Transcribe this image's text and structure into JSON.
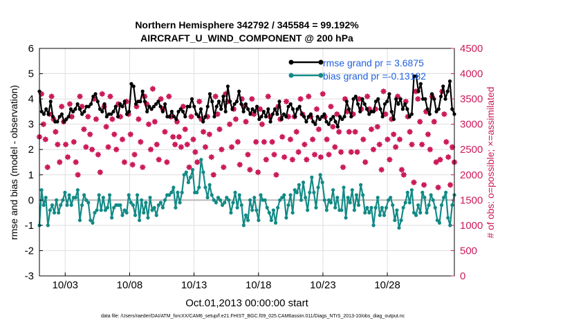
{
  "chart_data": {
    "type": "line",
    "title": "Northern Hemisphere 342792 / 345584 = 99.192%",
    "subtitle": "AIRCRAFT_U_WIND_COMPONENT @ 200 hPa",
    "xlabel": "Oct.01,2013 00:00:00 start",
    "ylabel": "rmse and bias (model - observation)",
    "ylabel_right": "# of obs: o=possible; ×=assimilated",
    "footer": "data file: /Users/raeder/DAI/ATM_forcXX/CAM6_setup/f.e21.FHIST_BGC.f09_025.CAM6assim.011/Diags_NTrS_2013-10/obs_diag_output.nc",
    "xlim": [
      1,
      33.2
    ],
    "ylim": [
      -3,
      6
    ],
    "ylim_right": [
      0,
      4500
    ],
    "x_ticks": [
      3,
      8,
      13,
      18,
      23,
      28
    ],
    "x_tick_labels": [
      "10/03",
      "10/08",
      "10/13",
      "10/18",
      "10/23",
      "10/28"
    ],
    "y_ticks": [
      "-3",
      "-2",
      "-1",
      "0",
      "1",
      "2",
      "3",
      "4",
      "5",
      "6"
    ],
    "y_ticks_right": [
      "0",
      "500",
      "1000",
      "1500",
      "2000",
      "2500",
      "3000",
      "3500",
      "4000",
      "4500"
    ],
    "series": [
      {
        "name": "rmse grand pr = 3.6875",
        "color": "#000000",
        "values": [
          4.3,
          3.5,
          3.4,
          3.6,
          3.4,
          3.9,
          3.3,
          3.1,
          3.1,
          3.3,
          3.4,
          3.1,
          3.2,
          3.3,
          3.6,
          3.5,
          3.6,
          3.8,
          3.6,
          3.4,
          3.5,
          3.7,
          3.7,
          3.8,
          4.1,
          4.2,
          3.9,
          3.6,
          3.5,
          3.8,
          3.3,
          3.4,
          3.4,
          3.5,
          3.7,
          3.3,
          3.8,
          3.7,
          3.9,
          3.4,
          3.5,
          4.6,
          4.5,
          3.8,
          3.9,
          3.9,
          4.3,
          3.9,
          3.5,
          3.7,
          3.6,
          3.7,
          3.8,
          3.9,
          3.7,
          3.5,
          3.8,
          3.3,
          3.3,
          3.5,
          3.3,
          3.2,
          3.5,
          3.6,
          3.5,
          3.3,
          3.7,
          3.7,
          4.0,
          3.7,
          3.4,
          3.3,
          3.6,
          3.1,
          3.3,
          3.7,
          4.2,
          3.9,
          3.3,
          3.7,
          3.9,
          3.6,
          4.1,
          3.5,
          4.5,
          3.9,
          3.6,
          3.8,
          3.9,
          4.3,
          3.8,
          3.5,
          3.8,
          3.6,
          3.4,
          3.6,
          3.5,
          3.7,
          3.2,
          3.3,
          3.5,
          3.3,
          3.6,
          3.1,
          3.4,
          3.6,
          3.4,
          3.9,
          3.2,
          3.4,
          3.3,
          3.7,
          3.8,
          3.6,
          3.3,
          3.6,
          3.7,
          3.4,
          3.3,
          3.1,
          3.3,
          3.4,
          3.1,
          3.0,
          3.3,
          3.2,
          3.3,
          3.4,
          3.1,
          3.0,
          3.2,
          3.3,
          3.1,
          2.9,
          3.3,
          3.2,
          3.3,
          3.9,
          3.6,
          3.3,
          4.0,
          4.1,
          3.8,
          3.5,
          4.0,
          3.8,
          3.6,
          3.4,
          3.5,
          3.5,
          3.9,
          4.0,
          3.6,
          3.3,
          3.8,
          3.9,
          4.2,
          3.5,
          3.2,
          4.0,
          3.8,
          4.0,
          3.6,
          3.8,
          3.6,
          3.3,
          3.4,
          4.9,
          4.9,
          4.3,
          4.6,
          4.0,
          4.0,
          3.6,
          3.4,
          4.2,
          4.0,
          3.5,
          3.6,
          4.1,
          4.5,
          4.0,
          4.3,
          4.7,
          3.6,
          3.4
        ]
      },
      {
        "name": "bias grand pr =-0.13182",
        "color": "#128a86",
        "values": [
          -1.0,
          0.4,
          -0.2,
          0.1,
          -1.0,
          -0.4,
          -0.2,
          -0.5,
          0.0,
          -0.5,
          -0.2,
          0.0,
          0.3,
          -0.2,
          0.2,
          -0.2,
          0.1,
          0.1,
          0.4,
          -0.8,
          -0.2,
          0.2,
          0.0,
          -0.1,
          -0.8,
          -0.9,
          -0.5,
          -0.4,
          0.2,
          -0.4,
          0.1,
          -0.4,
          -0.3,
          0.2,
          -0.7,
          -0.3,
          -0.2,
          -0.2,
          -0.2,
          -0.6,
          -0.4,
          -0.5,
          0.2,
          -0.1,
          -0.2,
          -0.6,
          0.2,
          -0.8,
          0.0,
          -0.5,
          -0.1,
          -0.7,
          0.1,
          -0.4,
          -0.3,
          -0.6,
          -0.2,
          -0.1,
          -0.3,
          0.0,
          0.2,
          0.2,
          0.3,
          0.5,
          -0.3,
          0.3,
          -0.1,
          0.3,
          1.0,
          1.1,
          0.7,
          0.9,
          1.2,
          0.3,
          0.3,
          0.5,
          1.6,
          1.1,
          0.5,
          0.1,
          0.6,
          0.2,
          0.0,
          -0.1,
          0.1,
          0.0,
          -0.2,
          -0.1,
          0.1,
          0.0,
          -0.5,
          -0.1,
          0.3,
          -0.3,
          0.2,
          -0.2,
          -1.0,
          -0.6,
          -0.8,
          0.0,
          -0.4,
          0.1,
          -0.4,
          -0.8,
          0.2,
          0.0,
          0.0,
          -0.3,
          -0.5,
          -0.8,
          -0.4,
          -0.9,
          -0.3,
          0.0,
          0.1,
          0.2,
          -0.7,
          -0.2,
          0.2,
          -0.5,
          0.4,
          0.3,
          0.6,
          0.0,
          0.7,
          0.1,
          -0.4,
          0.3,
          0.9,
          0.3,
          -0.3,
          0.5,
          1.0,
          0.7,
          0.0,
          -0.4,
          0.0,
          -0.1,
          0.4,
          -0.3,
          0.1,
          -0.4,
          -0.4,
          0.5,
          -0.7,
          0.1,
          -0.1,
          0.4,
          -0.4,
          0.2,
          -0.2,
          0.6,
          0.2,
          -0.5,
          -0.3,
          -0.5,
          -0.3,
          -1.0,
          -0.3,
          0.1,
          -0.6,
          -0.3,
          -0.6,
          -0.3,
          0.0,
          0.1,
          -0.2,
          -0.8,
          -0.4,
          -1.1,
          -0.8,
          -0.3,
          -0.1,
          0.3,
          -0.1,
          0.4,
          -0.5,
          -0.6,
          -0.2,
          -0.5,
          0.3,
          0.1,
          -0.5,
          -0.2,
          0.2,
          0.0,
          -0.3,
          -0.8,
          -0.9,
          -0.2,
          0.1,
          0.3,
          -0.7,
          -1.0,
          -0.2,
          0.2
        ]
      },
      {
        "name": "# of obs possible",
        "color": "#cc1a5a",
        "marker": "o",
        "axis": "right",
        "values": [
          2750,
          3600,
          3000,
          2700,
          2150,
          3200,
          3550,
          3100,
          2850,
          2600,
          2250,
          3350,
          3050,
          2600,
          2350,
          3400,
          3150,
          2650,
          2250,
          2000,
          3550,
          3350,
          2900,
          2550,
          3150,
          2800,
          2500,
          3500,
          3100,
          2400,
          2050,
          3600,
          3350,
          2950,
          2550,
          3550,
          3100,
          2800,
          2500,
          3400,
          3150,
          2700,
          2250,
          3450,
          3200,
          2800,
          2200,
          2400,
          3350,
          3100,
          2650,
          2150,
          3550,
          3400,
          3000,
          2500,
          3700,
          3050,
          2600,
          2300,
          3500,
          3300,
          2850,
          2250,
          3550,
          3150,
          2750,
          2600,
          3050,
          2750,
          2550,
          3350,
          2900,
          2600,
          2150,
          3150,
          2700,
          2450,
          2250,
          3450,
          3100,
          2850,
          2550,
          3150,
          2800,
          2350,
          2000,
          3550,
          3200,
          2900,
          2500,
          2150,
          3600,
          3450,
          3000,
          2550,
          3300,
          3100,
          2650,
          2200,
          3500,
          3350,
          3050,
          2400,
          2100,
          3500,
          3200,
          2650,
          2050,
          3300,
          3000,
          2650,
          2300,
          3550,
          3150,
          2650,
          2400,
          2000,
          3350,
          3100,
          2750,
          2350,
          3450,
          3150,
          2700,
          2300,
          3150,
          2850,
          2450,
          3500,
          3200,
          2600,
          2300,
          3550,
          3150,
          2700,
          2400,
          3300,
          2900,
          2350,
          3600,
          3150,
          2700,
          2400,
          3350,
          2950,
          2550,
          3200,
          2850,
          2450,
          2150,
          3500,
          3250,
          2850,
          2450,
          3200,
          2850,
          2450,
          3500,
          3300,
          2700,
          2250,
          3550,
          3300,
          2900,
          2500,
          3300,
          2950,
          2600,
          2100,
          3650,
          3200,
          2700,
          2300,
          3100,
          2800,
          2550,
          3550,
          2700,
          2100,
          2000,
          3450,
          3150,
          2850,
          2600,
          1850,
          3650,
          3500,
          3050,
          2600,
          1800,
          3250,
          2800,
          2500,
          3550,
          3050,
          2250,
          1750,
          2300,
          3650,
          3200,
          2650,
          2350,
          1800,
          2550,
          2250
        ]
      }
    ]
  }
}
